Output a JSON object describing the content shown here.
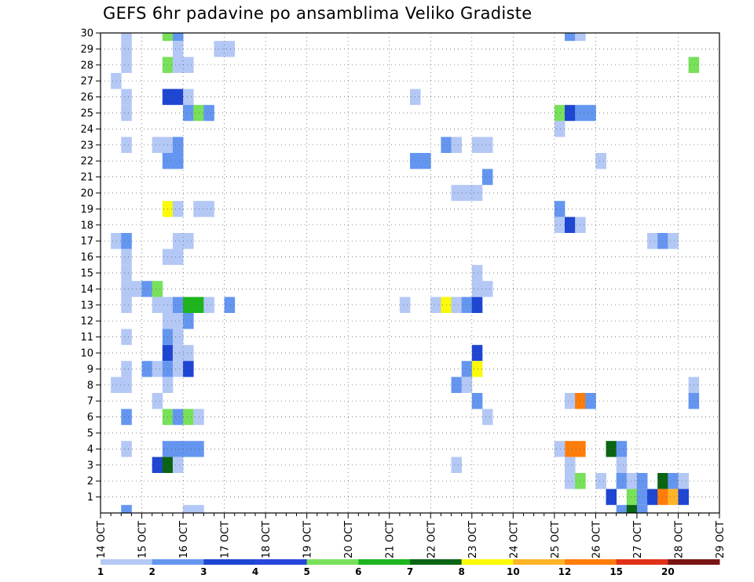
{
  "chart_data": {
    "type": "heatmap",
    "title": "GEFS 6hr padavine po ansamblima Veliko Gradiste",
    "xlabel": "",
    "ylabel": "",
    "x_tick_labels": [
      "14 OCT",
      "15 OCT",
      "16 OCT",
      "17 OCT",
      "18 OCT",
      "19 OCT",
      "20 OCT",
      "21 OCT",
      "22 OCT",
      "23 OCT",
      "24 OCT",
      "25 OCT",
      "26 OCT",
      "27 OCT",
      "28 OCT",
      "29 OCT"
    ],
    "y_tick_labels": [
      "1",
      "2",
      "3",
      "4",
      "5",
      "6",
      "7",
      "8",
      "9",
      "10",
      "11",
      "12",
      "13",
      "14",
      "15",
      "16",
      "17",
      "18",
      "19",
      "20",
      "21",
      "22",
      "23",
      "24",
      "25",
      "26",
      "27",
      "28",
      "29",
      "30"
    ],
    "x_unit": "6-hour steps from 14 OCT 00Z",
    "x_range": [
      0,
      60
    ],
    "y_range": [
      0,
      30
    ],
    "grid": true,
    "colorbar": {
      "labels": [
        "1",
        "2",
        "3",
        "4",
        "5",
        "6",
        "7",
        "8",
        "10",
        "12",
        "15",
        "20"
      ],
      "colors": [
        "#b4c8f5",
        "#6496f0",
        "#1e46d2",
        "#2846dc",
        "#78e15a",
        "#1eb41e",
        "#0a6414",
        "#fafa0a",
        "#ffb428",
        "#ff7d0a",
        "#e13219",
        "#781414"
      ]
    },
    "cells": [
      {
        "x": 2,
        "y": 30,
        "level": 1
      },
      {
        "x": 2,
        "y": 29,
        "level": 1
      },
      {
        "x": 2,
        "y": 28,
        "level": 1
      },
      {
        "x": 1,
        "y": 27,
        "level": 1
      },
      {
        "x": 2,
        "y": 26,
        "level": 1
      },
      {
        "x": 2,
        "y": 25,
        "level": 1
      },
      {
        "x": 2,
        "y": 23,
        "level": 1
      },
      {
        "x": 1,
        "y": 17,
        "level": 1
      },
      {
        "x": 2,
        "y": 17,
        "level": 2
      },
      {
        "x": 2,
        "y": 16,
        "level": 1
      },
      {
        "x": 2,
        "y": 15,
        "level": 1
      },
      {
        "x": 2,
        "y": 14,
        "level": 1
      },
      {
        "x": 3,
        "y": 14,
        "level": 1
      },
      {
        "x": 2,
        "y": 13,
        "level": 1
      },
      {
        "x": 2,
        "y": 11,
        "level": 1
      },
      {
        "x": 2,
        "y": 9,
        "level": 1
      },
      {
        "x": 1,
        "y": 8,
        "level": 1
      },
      {
        "x": 2,
        "y": 8,
        "level": 1
      },
      {
        "x": 2,
        "y": 6,
        "level": 2
      },
      {
        "x": 2,
        "y": 4,
        "level": 1
      },
      {
        "x": 2,
        "y": 0,
        "level": 2
      },
      {
        "x": 4,
        "y": 14,
        "level": 2
      },
      {
        "x": 5,
        "y": 14,
        "level": 5
      },
      {
        "x": 4,
        "y": 9,
        "level": 2
      },
      {
        "x": 5,
        "y": 9,
        "level": 1
      },
      {
        "x": 5,
        "y": 7,
        "level": 1
      },
      {
        "x": 5,
        "y": 3,
        "level": 3
      },
      {
        "x": 6,
        "y": 30,
        "level": 5
      },
      {
        "x": 7,
        "y": 30,
        "level": 2
      },
      {
        "x": 7,
        "y": 29,
        "level": 1
      },
      {
        "x": 6,
        "y": 28,
        "level": 5
      },
      {
        "x": 7,
        "y": 28,
        "level": 1
      },
      {
        "x": 8,
        "y": 28,
        "level": 1
      },
      {
        "x": 6,
        "y": 26,
        "level": 3
      },
      {
        "x": 7,
        "y": 26,
        "level": 3
      },
      {
        "x": 8,
        "y": 26,
        "level": 1
      },
      {
        "x": 8,
        "y": 25,
        "level": 2
      },
      {
        "x": 9,
        "y": 25,
        "level": 5
      },
      {
        "x": 10,
        "y": 25,
        "level": 2
      },
      {
        "x": 5,
        "y": 23,
        "level": 1
      },
      {
        "x": 6,
        "y": 23,
        "level": 1
      },
      {
        "x": 7,
        "y": 23,
        "level": 2
      },
      {
        "x": 6,
        "y": 22,
        "level": 2
      },
      {
        "x": 7,
        "y": 22,
        "level": 2
      },
      {
        "x": 6,
        "y": 19,
        "level": 8
      },
      {
        "x": 7,
        "y": 19,
        "level": 1
      },
      {
        "x": 9,
        "y": 19,
        "level": 1
      },
      {
        "x": 10,
        "y": 19,
        "level": 1
      },
      {
        "x": 8,
        "y": 17,
        "level": 1
      },
      {
        "x": 7,
        "y": 17,
        "level": 1
      },
      {
        "x": 6,
        "y": 16,
        "level": 1
      },
      {
        "x": 7,
        "y": 16,
        "level": 1
      },
      {
        "x": 5,
        "y": 13,
        "level": 1
      },
      {
        "x": 6,
        "y": 13,
        "level": 1
      },
      {
        "x": 7,
        "y": 13,
        "level": 2
      },
      {
        "x": 8,
        "y": 13,
        "level": 6
      },
      {
        "x": 9,
        "y": 13,
        "level": 6
      },
      {
        "x": 10,
        "y": 13,
        "level": 1
      },
      {
        "x": 12,
        "y": 13,
        "level": 2
      },
      {
        "x": 6,
        "y": 12,
        "level": 1
      },
      {
        "x": 7,
        "y": 12,
        "level": 1
      },
      {
        "x": 8,
        "y": 12,
        "level": 2
      },
      {
        "x": 6,
        "y": 11,
        "level": 2
      },
      {
        "x": 7,
        "y": 11,
        "level": 1
      },
      {
        "x": 6,
        "y": 10,
        "level": 3
      },
      {
        "x": 7,
        "y": 10,
        "level": 1
      },
      {
        "x": 8,
        "y": 10,
        "level": 1
      },
      {
        "x": 6,
        "y": 9,
        "level": 2
      },
      {
        "x": 7,
        "y": 9,
        "level": 1
      },
      {
        "x": 8,
        "y": 9,
        "level": 3
      },
      {
        "x": 6,
        "y": 8,
        "level": 1
      },
      {
        "x": 6,
        "y": 6,
        "level": 5
      },
      {
        "x": 7,
        "y": 6,
        "level": 2
      },
      {
        "x": 8,
        "y": 6,
        "level": 5
      },
      {
        "x": 9,
        "y": 6,
        "level": 1
      },
      {
        "x": 6,
        "y": 4,
        "level": 2
      },
      {
        "x": 7,
        "y": 4,
        "level": 2
      },
      {
        "x": 8,
        "y": 4,
        "level": 2
      },
      {
        "x": 9,
        "y": 4,
        "level": 2
      },
      {
        "x": 6,
        "y": 3,
        "level": 7
      },
      {
        "x": 7,
        "y": 3,
        "level": 1
      },
      {
        "x": 8,
        "y": 0,
        "level": 1
      },
      {
        "x": 9,
        "y": 0,
        "level": 1
      },
      {
        "x": 11,
        "y": 29,
        "level": 1
      },
      {
        "x": 12,
        "y": 29,
        "level": 1
      },
      {
        "x": 30,
        "y": 26,
        "level": 1
      },
      {
        "x": 30,
        "y": 22,
        "level": 2
      },
      {
        "x": 31,
        "y": 22,
        "level": 2
      },
      {
        "x": 29,
        "y": 13,
        "level": 1
      },
      {
        "x": 32,
        "y": 13,
        "level": 1
      },
      {
        "x": 33,
        "y": 13,
        "level": 8
      },
      {
        "x": 34,
        "y": 13,
        "level": 1
      },
      {
        "x": 35,
        "y": 13,
        "level": 2
      },
      {
        "x": 36,
        "y": 13,
        "level": 3
      },
      {
        "x": 33,
        "y": 23,
        "level": 2
      },
      {
        "x": 34,
        "y": 23,
        "level": 1
      },
      {
        "x": 36,
        "y": 23,
        "level": 1
      },
      {
        "x": 37,
        "y": 23,
        "level": 1
      },
      {
        "x": 37,
        "y": 21,
        "level": 2
      },
      {
        "x": 34,
        "y": 20,
        "level": 1
      },
      {
        "x": 35,
        "y": 20,
        "level": 1
      },
      {
        "x": 36,
        "y": 20,
        "level": 1
      },
      {
        "x": 36,
        "y": 15,
        "level": 1
      },
      {
        "x": 36,
        "y": 14,
        "level": 1
      },
      {
        "x": 37,
        "y": 14,
        "level": 1
      },
      {
        "x": 36,
        "y": 10,
        "level": 3
      },
      {
        "x": 35,
        "y": 9,
        "level": 2
      },
      {
        "x": 36,
        "y": 9,
        "level": 8
      },
      {
        "x": 34,
        "y": 8,
        "level": 2
      },
      {
        "x": 35,
        "y": 8,
        "level": 1
      },
      {
        "x": 36,
        "y": 7,
        "level": 2
      },
      {
        "x": 37,
        "y": 6,
        "level": 1
      },
      {
        "x": 34,
        "y": 3,
        "level": 1
      },
      {
        "x": 45,
        "y": 30,
        "level": 2
      },
      {
        "x": 46,
        "y": 30,
        "level": 1
      },
      {
        "x": 44,
        "y": 25,
        "level": 5
      },
      {
        "x": 45,
        "y": 25,
        "level": 3
      },
      {
        "x": 46,
        "y": 25,
        "level": 2
      },
      {
        "x": 47,
        "y": 25,
        "level": 2
      },
      {
        "x": 44,
        "y": 24,
        "level": 1
      },
      {
        "x": 48,
        "y": 22,
        "level": 1
      },
      {
        "x": 44,
        "y": 19,
        "level": 2
      },
      {
        "x": 44,
        "y": 18,
        "level": 1
      },
      {
        "x": 45,
        "y": 18,
        "level": 3
      },
      {
        "x": 46,
        "y": 18,
        "level": 1
      },
      {
        "x": 45,
        "y": 7,
        "level": 1
      },
      {
        "x": 46,
        "y": 7,
        "level": 14
      },
      {
        "x": 47,
        "y": 7,
        "level": 2
      },
      {
        "x": 45,
        "y": 4,
        "level": 12
      },
      {
        "x": 46,
        "y": 4,
        "level": 12
      },
      {
        "x": 44,
        "y": 4,
        "level": 1
      },
      {
        "x": 49,
        "y": 4,
        "level": 7
      },
      {
        "x": 50,
        "y": 4,
        "level": 2
      },
      {
        "x": 45,
        "y": 3,
        "level": 1
      },
      {
        "x": 50,
        "y": 3,
        "level": 1
      },
      {
        "x": 45,
        "y": 2,
        "level": 1
      },
      {
        "x": 46,
        "y": 2,
        "level": 5
      },
      {
        "x": 48,
        "y": 2,
        "level": 1
      },
      {
        "x": 50,
        "y": 2,
        "level": 2
      },
      {
        "x": 51,
        "y": 2,
        "level": 1
      },
      {
        "x": 52,
        "y": 2,
        "level": 2
      },
      {
        "x": 54,
        "y": 2,
        "level": 7
      },
      {
        "x": 55,
        "y": 2,
        "level": 2
      },
      {
        "x": 56,
        "y": 2,
        "level": 1
      },
      {
        "x": 49,
        "y": 1,
        "level": 3
      },
      {
        "x": 51,
        "y": 1,
        "level": 5
      },
      {
        "x": 52,
        "y": 1,
        "level": 2
      },
      {
        "x": 53,
        "y": 1,
        "level": 3
      },
      {
        "x": 54,
        "y": 1,
        "level": 14
      },
      {
        "x": 55,
        "y": 1,
        "level": 10
      },
      {
        "x": 56,
        "y": 1,
        "level": 3
      },
      {
        "x": 50,
        "y": 0,
        "level": 2
      },
      {
        "x": 51,
        "y": 0,
        "level": 7
      },
      {
        "x": 52,
        "y": 0,
        "level": 2
      },
      {
        "x": 57,
        "y": 28,
        "level": 5
      },
      {
        "x": 57,
        "y": 8,
        "level": 1
      },
      {
        "x": 57,
        "y": 7,
        "level": 2
      },
      {
        "x": 53,
        "y": 17,
        "level": 1
      },
      {
        "x": 54,
        "y": 17,
        "level": 2
      },
      {
        "x": 55,
        "y": 17,
        "level": 1
      }
    ]
  }
}
